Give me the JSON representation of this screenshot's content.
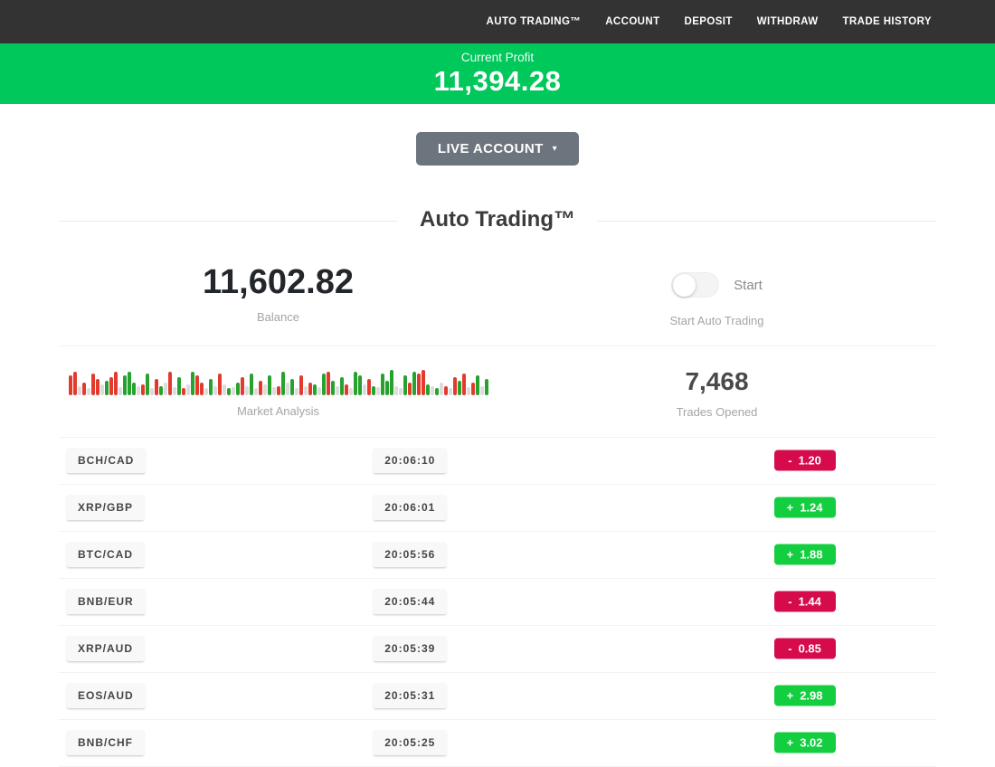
{
  "nav": {
    "items": [
      "AUTO TRADING™",
      "ACCOUNT",
      "DEPOSIT",
      "WITHDRAW",
      "TRADE HISTORY"
    ]
  },
  "profit_banner": {
    "label": "Current Profit",
    "value": "11,394.28"
  },
  "account_selector": {
    "label": "LIVE ACCOUNT",
    "caret": "▾"
  },
  "section_title": "Auto Trading™",
  "stats": {
    "balance": {
      "value": "11,602.82",
      "label": "Balance"
    },
    "start": {
      "toggle_label": "Start",
      "label": "Start Auto Trading",
      "toggle_state": "off"
    },
    "market": {
      "label": "Market Analysis"
    },
    "trades_opened": {
      "value": "7,468",
      "label": "Trades Opened"
    }
  },
  "market_analysis_bars": [
    [
      "r",
      22
    ],
    [
      "r",
      26
    ],
    [
      "e",
      10
    ],
    [
      "r",
      14
    ],
    [
      "e",
      8
    ],
    [
      "r",
      24
    ],
    [
      "r",
      18
    ],
    [
      "e",
      12
    ],
    [
      "g",
      16
    ],
    [
      "r",
      20
    ],
    [
      "r",
      26
    ],
    [
      "e",
      9
    ],
    [
      "g",
      22
    ],
    [
      "g",
      26
    ],
    [
      "g",
      14
    ],
    [
      "e",
      10
    ],
    [
      "r",
      12
    ],
    [
      "g",
      24
    ],
    [
      "e",
      8
    ],
    [
      "r",
      18
    ],
    [
      "g",
      10
    ],
    [
      "e",
      14
    ],
    [
      "r",
      26
    ],
    [
      "e",
      9
    ],
    [
      "g",
      20
    ],
    [
      "r",
      8
    ],
    [
      "e",
      12
    ],
    [
      "g",
      26
    ],
    [
      "r",
      22
    ],
    [
      "r",
      14
    ],
    [
      "e",
      8
    ],
    [
      "g",
      18
    ],
    [
      "e",
      10
    ],
    [
      "r",
      24
    ],
    [
      "e",
      12
    ],
    [
      "g",
      8
    ],
    [
      "e",
      9
    ],
    [
      "g",
      14
    ],
    [
      "r",
      20
    ],
    [
      "e",
      10
    ],
    [
      "g",
      24
    ],
    [
      "e",
      8
    ],
    [
      "r",
      16
    ],
    [
      "e",
      12
    ],
    [
      "g",
      22
    ],
    [
      "e",
      9
    ],
    [
      "r",
      10
    ],
    [
      "g",
      26
    ],
    [
      "e",
      14
    ],
    [
      "g",
      18
    ],
    [
      "e",
      8
    ],
    [
      "r",
      22
    ],
    [
      "e",
      10
    ],
    [
      "r",
      14
    ],
    [
      "g",
      12
    ],
    [
      "e",
      9
    ],
    [
      "g",
      24
    ],
    [
      "r",
      26
    ],
    [
      "g",
      16
    ],
    [
      "e",
      10
    ],
    [
      "g",
      20
    ],
    [
      "r",
      12
    ],
    [
      "e",
      8
    ],
    [
      "g",
      26
    ],
    [
      "g",
      22
    ],
    [
      "e",
      12
    ],
    [
      "r",
      18
    ],
    [
      "g",
      10
    ],
    [
      "e",
      9
    ],
    [
      "g",
      24
    ],
    [
      "g",
      16
    ],
    [
      "g",
      28
    ],
    [
      "e",
      10
    ],
    [
      "e",
      8
    ],
    [
      "g",
      22
    ],
    [
      "r",
      14
    ],
    [
      "g",
      26
    ],
    [
      "r",
      24
    ],
    [
      "r",
      28
    ],
    [
      "g",
      12
    ],
    [
      "e",
      10
    ],
    [
      "g",
      8
    ],
    [
      "e",
      14
    ],
    [
      "r",
      10
    ],
    [
      "e",
      8
    ],
    [
      "r",
      20
    ],
    [
      "g",
      16
    ],
    [
      "r",
      24
    ],
    [
      "e",
      9
    ],
    [
      "r",
      14
    ],
    [
      "g",
      22
    ],
    [
      "e",
      10
    ],
    [
      "g",
      18
    ]
  ],
  "trades": [
    {
      "pair": "BCH/CAD",
      "time": "20:06:10",
      "sign": "-",
      "value": "1.20",
      "direction": "loss"
    },
    {
      "pair": "XRP/GBP",
      "time": "20:06:01",
      "sign": "+",
      "value": "1.24",
      "direction": "profit"
    },
    {
      "pair": "BTC/CAD",
      "time": "20:05:56",
      "sign": "+",
      "value": "1.88",
      "direction": "profit"
    },
    {
      "pair": "BNB/EUR",
      "time": "20:05:44",
      "sign": "-",
      "value": "1.44",
      "direction": "loss"
    },
    {
      "pair": "XRP/AUD",
      "time": "20:05:39",
      "sign": "-",
      "value": "0.85",
      "direction": "loss"
    },
    {
      "pair": "EOS/AUD",
      "time": "20:05:31",
      "sign": "+",
      "value": "2.98",
      "direction": "profit"
    },
    {
      "pair": "BNB/CHF",
      "time": "20:05:25",
      "sign": "+",
      "value": "3.02",
      "direction": "profit"
    }
  ],
  "colors": {
    "nav_bg": "#333333",
    "banner_green": "#00c85b",
    "button_gray": "#6c757d",
    "profit_badge_green": "#13ce3f",
    "loss_badge_red": "#d60b4c"
  }
}
